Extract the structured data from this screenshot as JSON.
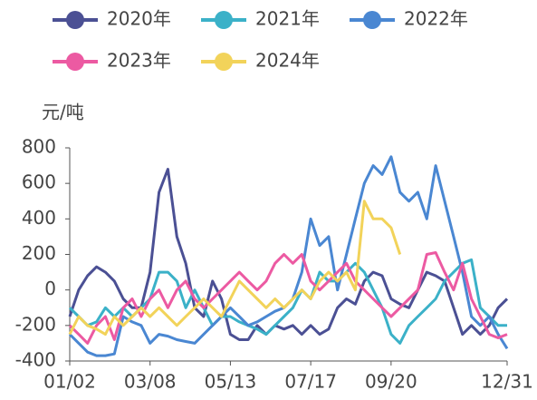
{
  "chart_data": {
    "type": "line",
    "y_label": "元/吨",
    "categories": [
      "01/02",
      null,
      null,
      null,
      null,
      null,
      null,
      null,
      null,
      "03/08",
      null,
      null,
      null,
      null,
      null,
      null,
      null,
      null,
      "05/13",
      null,
      null,
      null,
      null,
      null,
      null,
      null,
      null,
      "07/17",
      null,
      null,
      null,
      null,
      null,
      null,
      null,
      null,
      "09/20",
      null,
      null,
      null,
      null,
      null,
      null,
      null,
      null,
      null,
      null,
      null,
      null,
      "12/31"
    ],
    "ylim": [
      -400,
      800
    ],
    "yticks": [
      -400,
      -200,
      0,
      200,
      400,
      600,
      800
    ],
    "series": [
      {
        "name": "2020年",
        "color": "#4b5094",
        "values": [
          -150,
          0,
          80,
          130,
          100,
          50,
          -50,
          -100,
          -100,
          100,
          550,
          680,
          300,
          150,
          -100,
          -150,
          50,
          -50,
          -250,
          -280,
          -280,
          -200,
          -250,
          -200,
          -220,
          -200,
          -250,
          -200,
          -250,
          -220,
          -100,
          -50,
          -80,
          50,
          100,
          80,
          -50,
          -80,
          -100,
          0,
          100,
          80,
          50,
          -100,
          -250,
          -200,
          -250,
          -200,
          -100,
          -50
        ]
      },
      {
        "name": "2021年",
        "color": "#3bb1c8",
        "values": [
          -100,
          -150,
          -200,
          -180,
          -100,
          -150,
          -100,
          -150,
          -100,
          -50,
          100,
          100,
          50,
          -100,
          0,
          -100,
          -200,
          -150,
          -150,
          -180,
          -200,
          -220,
          -250,
          -200,
          -150,
          -100,
          0,
          -50,
          100,
          50,
          50,
          100,
          150,
          100,
          0,
          -100,
          -250,
          -300,
          -200,
          -150,
          -100,
          -50,
          50,
          100,
          150,
          170,
          -100,
          -150,
          -200,
          -200
        ]
      },
      {
        "name": "2022年",
        "color": "#4a87d2",
        "values": [
          -250,
          -300,
          -350,
          -370,
          -370,
          -360,
          -150,
          -180,
          -200,
          -300,
          -250,
          -260,
          -280,
          -290,
          -300,
          -250,
          -200,
          -150,
          -100,
          -150,
          -200,
          -180,
          -150,
          -120,
          -100,
          -50,
          100,
          400,
          250,
          300,
          0,
          200,
          400,
          600,
          700,
          650,
          750,
          550,
          500,
          550,
          400,
          700,
          500,
          300,
          100,
          -150,
          -200,
          -150,
          -250,
          -330
        ]
      },
      {
        "name": "2023年",
        "color": "#ec5aa2",
        "values": [
          -200,
          -250,
          -300,
          -200,
          -150,
          -280,
          -100,
          -50,
          -150,
          -50,
          0,
          -100,
          0,
          50,
          -50,
          -100,
          -50,
          0,
          50,
          100,
          50,
          0,
          50,
          150,
          200,
          150,
          200,
          50,
          0,
          50,
          100,
          150,
          50,
          0,
          -50,
          -100,
          -150,
          -100,
          -50,
          0,
          200,
          210,
          100,
          0,
          150,
          -50,
          -150,
          -250,
          -270,
          -250
        ]
      },
      {
        "name": "2024年",
        "color": "#f2d35a",
        "values": [
          -250,
          -150,
          -200,
          -220,
          -250,
          -150,
          -200,
          -150,
          -100,
          -150,
          -100,
          -150,
          -200,
          -150,
          -100,
          -50,
          -100,
          -150,
          -50,
          50,
          0,
          -50,
          -100,
          -50,
          -100,
          -50,
          0,
          -50,
          50,
          100,
          50,
          100,
          0,
          500,
          400,
          400,
          350,
          200,
          null,
          null,
          null,
          null,
          null,
          null,
          null,
          null,
          null,
          null,
          null,
          null
        ]
      }
    ]
  }
}
